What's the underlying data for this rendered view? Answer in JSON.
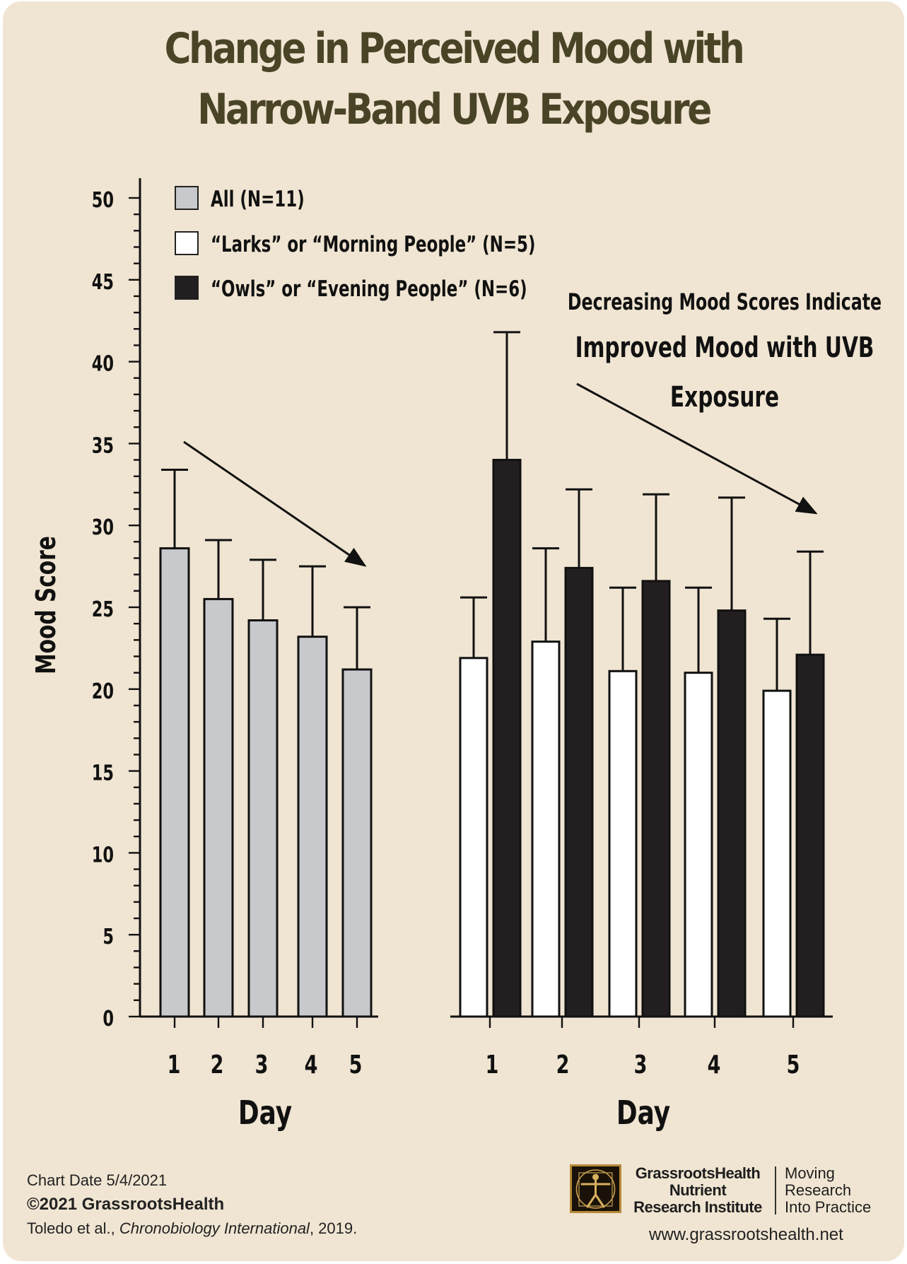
{
  "title": "Change in Perceived Mood with Narrow-Band UVB Exposure",
  "chart_data": {
    "type": "bar",
    "ylabel": "Mood Score",
    "ylim": [
      0,
      50
    ],
    "yticks": [
      0,
      5,
      10,
      15,
      20,
      25,
      30,
      35,
      40,
      45,
      50
    ],
    "grid": false,
    "legend_position": "top-left",
    "legend": [
      {
        "label": "All (N=11)",
        "color": "#c8c9cc"
      },
      {
        "label": "“Larks” or “Morning People” (N=5)",
        "color": "#ffffff"
      },
      {
        "label": "“Owls” or “Evening People” (N=6)",
        "color": "#231f20"
      }
    ],
    "annotation": [
      "Decreasing Mood Scores Indicate",
      "Improved Mood with UVB",
      "Exposure"
    ],
    "panels": [
      {
        "xlabel": "Day",
        "categories": [
          "1",
          "2",
          "3",
          "4",
          "5"
        ],
        "series": [
          {
            "name": "All (N=11)",
            "color": "#c8c9cc",
            "values": [
              28.6,
              25.5,
              24.2,
              23.2,
              21.2
            ],
            "error_upper": [
              33.4,
              29.1,
              27.9,
              27.5,
              25.0
            ]
          }
        ]
      },
      {
        "xlabel": "Day",
        "categories": [
          "1",
          "2",
          "3",
          "4",
          "5"
        ],
        "series": [
          {
            "name": "“Larks” or “Morning People” (N=5)",
            "color": "#ffffff",
            "values": [
              21.9,
              22.9,
              21.1,
              21.0,
              19.9
            ],
            "error_upper": [
              25.6,
              28.6,
              26.2,
              26.2,
              24.3
            ]
          },
          {
            "name": "“Owls” or “Evening People” (N=6)",
            "color": "#231f20",
            "values": [
              34.0,
              27.4,
              26.6,
              24.8,
              22.1
            ],
            "error_upper": [
              41.8,
              32.2,
              31.9,
              31.7,
              28.4
            ]
          }
        ]
      }
    ]
  },
  "footer": {
    "chart_date": "Chart Date 5/4/2021",
    "copyright": "©2021 GrassrootsHealth",
    "citation_authors": "Toledo et al., ",
    "citation_journal": "Chronobiology International",
    "citation_year": ", 2019."
  },
  "branding": {
    "org_line1": "GrassrootsHealth",
    "org_line2": "Nutrient",
    "org_line3": "Research Institute",
    "tagline1": "Moving",
    "tagline2": "Research",
    "tagline3": "Into Practice",
    "url": "www.grassrootshealth.net"
  }
}
